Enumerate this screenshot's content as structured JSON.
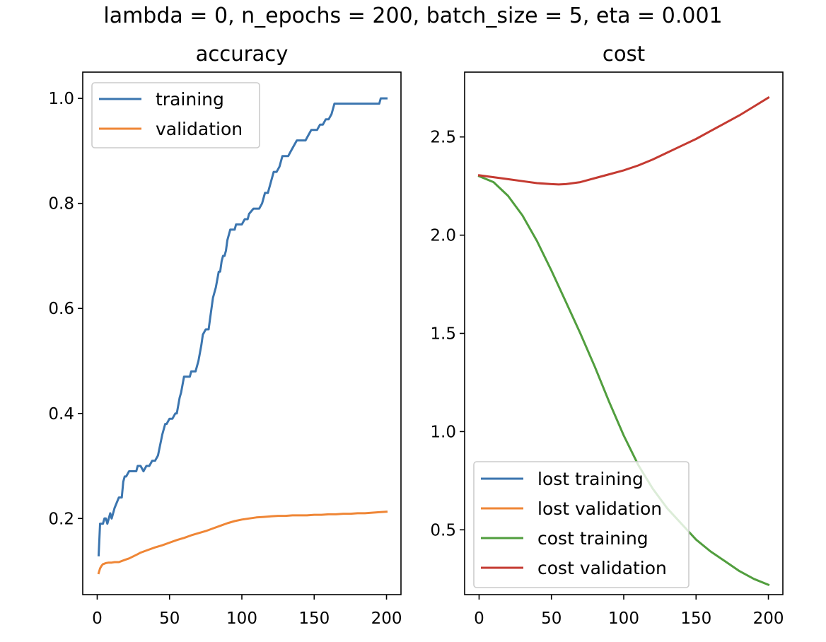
{
  "figure": {
    "suptitle": "lambda = 0, n_epochs = 200, batch_size = 5, eta = 0.001"
  },
  "chart_data": [
    {
      "type": "line",
      "title": "accuracy",
      "xlabel": "",
      "ylabel": "",
      "xlim": [
        -10,
        210
      ],
      "ylim": [
        0.055,
        1.05
      ],
      "xticks": [
        0,
        50,
        100,
        150,
        200
      ],
      "xtick_labels": [
        "0",
        "50",
        "100",
        "150",
        "200"
      ],
      "yticks": [
        0.2,
        0.4,
        0.6,
        0.8,
        1.0
      ],
      "ytick_labels": [
        "0.2",
        "0.4",
        "0.6",
        "0.8",
        "1.0"
      ],
      "grid": false,
      "legend_position": "top-left",
      "series": [
        {
          "name": "training",
          "color": "#3b75af",
          "x": [
            1,
            2,
            3,
            4,
            5,
            6,
            7,
            8,
            9,
            10,
            12,
            15,
            17,
            18,
            19,
            20,
            22,
            25,
            27,
            28,
            30,
            32,
            34,
            35,
            36,
            38,
            40,
            42,
            45,
            47,
            48,
            50,
            52,
            54,
            55,
            57,
            58,
            60,
            62,
            63,
            64,
            65,
            66,
            67,
            68,
            70,
            72,
            73,
            75,
            76,
            77,
            78,
            80,
            82,
            84,
            85,
            86,
            87,
            88,
            89,
            90,
            92,
            93,
            95,
            96,
            97,
            100,
            102,
            104,
            105,
            108,
            110,
            112,
            114,
            116,
            118,
            120,
            122,
            124,
            126,
            128,
            130,
            132,
            134,
            136,
            138,
            140,
            142,
            144,
            146,
            148,
            150,
            152,
            154,
            156,
            158,
            160,
            162,
            164,
            165,
            168,
            170,
            175,
            180,
            185,
            190,
            195,
            196,
            198,
            200
          ],
          "y": [
            0.13,
            0.19,
            0.19,
            0.19,
            0.2,
            0.2,
            0.19,
            0.2,
            0.21,
            0.2,
            0.22,
            0.24,
            0.24,
            0.27,
            0.28,
            0.28,
            0.29,
            0.29,
            0.29,
            0.3,
            0.3,
            0.29,
            0.3,
            0.3,
            0.3,
            0.31,
            0.31,
            0.32,
            0.36,
            0.38,
            0.38,
            0.39,
            0.39,
            0.4,
            0.4,
            0.43,
            0.44,
            0.47,
            0.47,
            0.47,
            0.47,
            0.48,
            0.48,
            0.48,
            0.48,
            0.5,
            0.53,
            0.55,
            0.56,
            0.56,
            0.56,
            0.58,
            0.62,
            0.64,
            0.67,
            0.67,
            0.69,
            0.7,
            0.7,
            0.71,
            0.73,
            0.75,
            0.75,
            0.75,
            0.76,
            0.76,
            0.76,
            0.77,
            0.77,
            0.78,
            0.79,
            0.79,
            0.79,
            0.8,
            0.82,
            0.82,
            0.84,
            0.86,
            0.86,
            0.87,
            0.89,
            0.89,
            0.89,
            0.9,
            0.91,
            0.92,
            0.92,
            0.92,
            0.92,
            0.93,
            0.94,
            0.94,
            0.94,
            0.95,
            0.95,
            0.96,
            0.96,
            0.97,
            0.99,
            0.99,
            0.99,
            0.99,
            0.99,
            0.99,
            0.99,
            0.99,
            0.99,
            1.0,
            1.0,
            1.0
          ]
        },
        {
          "name": "validation",
          "color": "#ef8636",
          "x": [
            1,
            2,
            3,
            4,
            5,
            6,
            8,
            10,
            12,
            15,
            18,
            20,
            22,
            25,
            28,
            30,
            35,
            40,
            45,
            50,
            55,
            60,
            65,
            70,
            75,
            80,
            85,
            90,
            95,
            100,
            105,
            110,
            115,
            120,
            125,
            130,
            135,
            140,
            145,
            150,
            155,
            160,
            165,
            170,
            175,
            180,
            185,
            190,
            195,
            200
          ],
          "y": [
            0.096,
            0.105,
            0.11,
            0.113,
            0.114,
            0.115,
            0.116,
            0.116,
            0.117,
            0.117,
            0.12,
            0.122,
            0.124,
            0.128,
            0.132,
            0.135,
            0.14,
            0.145,
            0.149,
            0.154,
            0.159,
            0.163,
            0.168,
            0.172,
            0.176,
            0.181,
            0.186,
            0.191,
            0.195,
            0.198,
            0.2,
            0.202,
            0.203,
            0.204,
            0.205,
            0.205,
            0.206,
            0.206,
            0.206,
            0.207,
            0.207,
            0.208,
            0.208,
            0.209,
            0.209,
            0.21,
            0.21,
            0.211,
            0.212,
            0.213
          ]
        }
      ]
    },
    {
      "type": "line",
      "title": "cost",
      "xlabel": "",
      "ylabel": "",
      "xlim": [
        -10,
        210
      ],
      "ylim": [
        0.17,
        2.83
      ],
      "xticks": [
        0,
        50,
        100,
        150,
        200
      ],
      "xtick_labels": [
        "0",
        "50",
        "100",
        "150",
        "200"
      ],
      "yticks": [
        0.5,
        1.0,
        1.5,
        2.0,
        2.5
      ],
      "ytick_labels": [
        "0.5",
        "1.0",
        "1.5",
        "2.0",
        "2.5"
      ],
      "grid": false,
      "legend_position": "bottom-left",
      "series": [
        {
          "name": "lost training",
          "color": "#3b75af",
          "x": [],
          "y": []
        },
        {
          "name": "lost validation",
          "color": "#ef8636",
          "x": [],
          "y": []
        },
        {
          "name": "cost training",
          "color": "#519e3e",
          "x": [
            0,
            10,
            20,
            30,
            40,
            50,
            60,
            70,
            80,
            90,
            100,
            110,
            120,
            130,
            140,
            150,
            160,
            170,
            180,
            190,
            200
          ],
          "y": [
            2.3,
            2.27,
            2.2,
            2.1,
            1.97,
            1.82,
            1.66,
            1.5,
            1.33,
            1.15,
            0.98,
            0.83,
            0.71,
            0.61,
            0.53,
            0.45,
            0.39,
            0.34,
            0.29,
            0.25,
            0.22
          ]
        },
        {
          "name": "cost validation",
          "color": "#c43a31",
          "x": [
            0,
            10,
            20,
            30,
            40,
            50,
            55,
            60,
            70,
            80,
            90,
            100,
            110,
            120,
            130,
            140,
            150,
            160,
            170,
            180,
            190,
            200
          ],
          "y": [
            2.305,
            2.295,
            2.285,
            2.275,
            2.265,
            2.26,
            2.258,
            2.26,
            2.27,
            2.29,
            2.31,
            2.33,
            2.355,
            2.385,
            2.42,
            2.455,
            2.49,
            2.53,
            2.57,
            2.61,
            2.655,
            2.7
          ]
        }
      ]
    }
  ]
}
